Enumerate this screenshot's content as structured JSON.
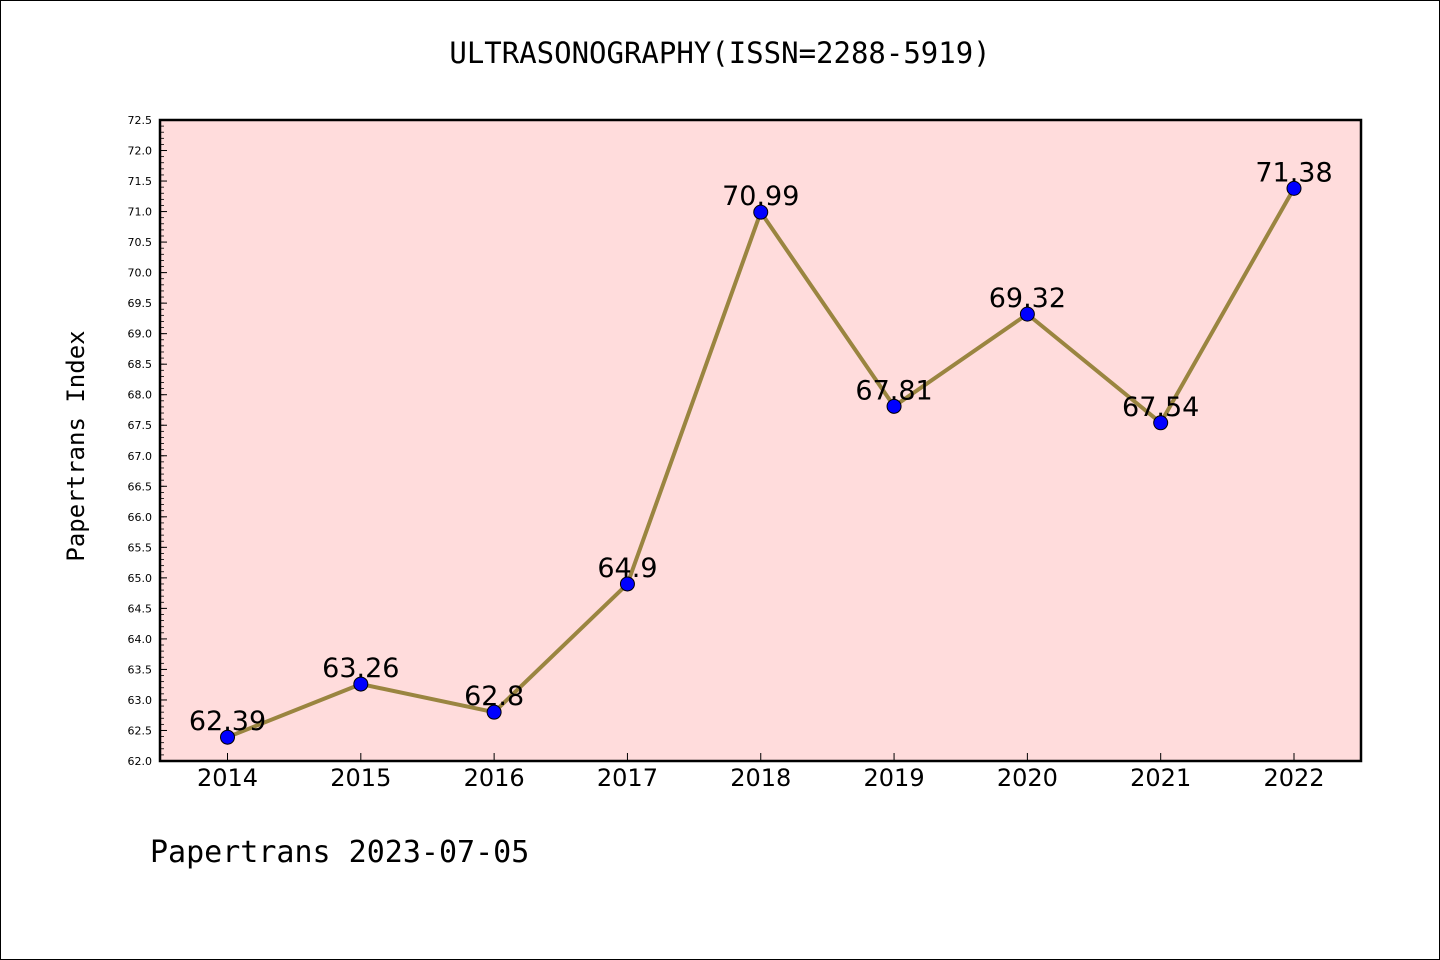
{
  "chart_data": {
    "type": "line",
    "title": "ULTRASONOGRAPHY(ISSN=2288-5919)",
    "ylabel": "Papertrans Index",
    "xlabel": "",
    "categories": [
      "2014",
      "2015",
      "2016",
      "2017",
      "2018",
      "2019",
      "2020",
      "2021",
      "2022"
    ],
    "series": [
      {
        "values": [
          62.39,
          63.26,
          62.8,
          64.9,
          70.99,
          67.81,
          69.32,
          67.54,
          71.38
        ],
        "labels": [
          "62.39",
          "63.26",
          "62.8",
          "64.9",
          "70.99",
          "67.81",
          "69.32",
          "67.54",
          "71.38"
        ]
      }
    ],
    "ylim": [
      62.0,
      72.5
    ],
    "ytick_labels": [
      "62.0",
      "62.5",
      "63.0",
      "63.5",
      "64.0",
      "64.5",
      "65.0",
      "65.5",
      "66.0",
      "66.5",
      "67.0",
      "67.5",
      "68.0",
      "68.5",
      "69.0",
      "69.5",
      "70.0",
      "70.5",
      "71.0",
      "71.5",
      "72.0",
      "72.5"
    ],
    "grid": false,
    "colors": {
      "plot_background": "#ffdcdc",
      "line": "#9a8540",
      "marker": "#0000ff"
    }
  },
  "footer": "Papertrans 2023-07-05"
}
